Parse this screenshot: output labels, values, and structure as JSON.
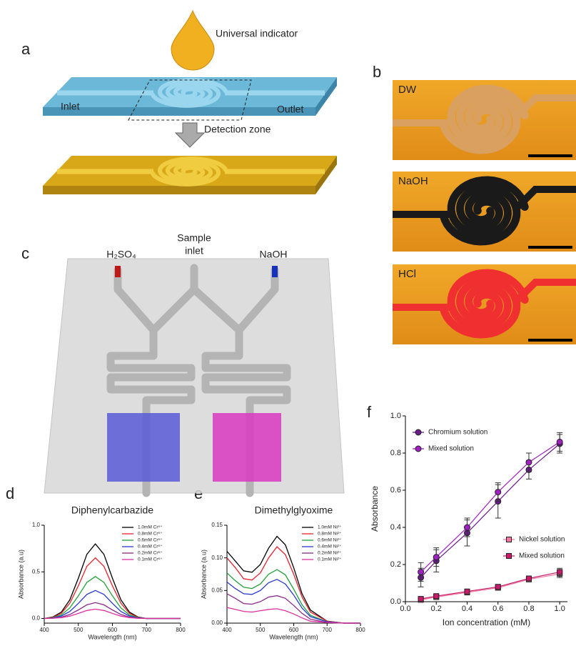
{
  "panel_labels": [
    "a",
    "b",
    "c",
    "d",
    "e",
    "f"
  ],
  "panel_a": {
    "drop": "Universal indicator",
    "inlet": "Inlet",
    "outlet": "Outlet",
    "zone": "Detection zone"
  },
  "panel_b": {
    "images": [
      "DW",
      "NaOH",
      "HCl"
    ]
  },
  "panel_c": {
    "left": "H₂SO₄",
    "middle": [
      "Sample",
      "inlet"
    ],
    "right": "NaOH"
  },
  "chart_data": [
    {
      "type": "line",
      "title": "Diphenylcarbazide",
      "x_label": "Wavelength (nm)",
      "y_label": "Absorbance (a.u)",
      "x": [
        400,
        425,
        450,
        475,
        500,
        525,
        550,
        575,
        600,
        625,
        650,
        675,
        700,
        725,
        750,
        775,
        800
      ],
      "xlim": [
        400,
        800
      ],
      "xticks": [
        400,
        500,
        600,
        700,
        800
      ],
      "ylim": [
        -0.05,
        1.0
      ],
      "yticks": [
        {
          "value": 0,
          "label": "0.0"
        },
        {
          "value": 0.5,
          "label": "0.5"
        },
        {
          "value": 1,
          "label": "1.0"
        }
      ],
      "legend": "upper right",
      "series": [
        {
          "name": "1.0mM Cr⁶⁺",
          "color": "#000000",
          "values": [
            0,
            0.016,
            0.068,
            0.2,
            0.432,
            0.688,
            0.8,
            0.688,
            0.432,
            0.2,
            0.068,
            0.016,
            0,
            0,
            0,
            0,
            0
          ]
        },
        {
          "name": "0.8mM Cr⁶⁺",
          "color": "#e8202a",
          "values": [
            0,
            0.013,
            0.055,
            0.163,
            0.351,
            0.559,
            0.65,
            0.559,
            0.351,
            0.163,
            0.055,
            0.013,
            0,
            0,
            0,
            0,
            0
          ]
        },
        {
          "name": "0.6mM Cr⁶⁺",
          "color": "#22a03a",
          "values": [
            0,
            0.009,
            0.038,
            0.113,
            0.243,
            0.387,
            0.45,
            0.387,
            0.243,
            0.113,
            0.038,
            0.009,
            0,
            0,
            0,
            0,
            0
          ]
        },
        {
          "name": "0.4mM Cr⁶⁺",
          "color": "#2838d0",
          "values": [
            0,
            0.006,
            0.026,
            0.075,
            0.162,
            0.258,
            0.3,
            0.258,
            0.162,
            0.075,
            0.026,
            0.006,
            0,
            0,
            0,
            0,
            0
          ]
        },
        {
          "name": "0.2mM Cr⁶⁺",
          "color": "#8a2a8a",
          "values": [
            0,
            0.003,
            0.014,
            0.043,
            0.092,
            0.146,
            0.17,
            0.146,
            0.092,
            0.043,
            0.014,
            0.003,
            0,
            0,
            0,
            0,
            0
          ]
        },
        {
          "name": "0.1mM Cr⁶⁺",
          "color": "#e030a0",
          "values": [
            0,
            0.002,
            0.009,
            0.025,
            0.054,
            0.086,
            0.1,
            0.086,
            0.054,
            0.025,
            0.009,
            0.002,
            0,
            0,
            0,
            0,
            0
          ]
        }
      ]
    },
    {
      "type": "line",
      "title": "Dimethylglyoxime",
      "x_label": "Wavelength (nm)",
      "y_label": "Absorbance (a.u)",
      "x": [
        400,
        425,
        450,
        475,
        500,
        525,
        550,
        575,
        600,
        625,
        650,
        700,
        750,
        800
      ],
      "xlim": [
        400,
        800
      ],
      "xticks": [
        400,
        500,
        600,
        700,
        800
      ],
      "ylim": [
        0,
        0.15
      ],
      "yticks": [
        {
          "value": 0,
          "label": "0.00"
        },
        {
          "value": 0.05,
          "label": "0.05"
        },
        {
          "value": 0.1,
          "label": "0.10"
        },
        {
          "value": 0.15,
          "label": "0.15"
        }
      ],
      "legend": "upper right",
      "series": [
        {
          "name": "1.0mM Ni²⁺",
          "color": "#000000",
          "values": [
            0.11,
            0.095,
            0.08,
            0.078,
            0.09,
            0.115,
            0.133,
            0.12,
            0.085,
            0.045,
            0.02,
            0.003,
            0,
            0
          ]
        },
        {
          "name": "0.8mM Ni²⁺",
          "color": "#e8202a",
          "values": [
            0.1,
            0.085,
            0.068,
            0.066,
            0.077,
            0.1,
            0.117,
            0.105,
            0.075,
            0.04,
            0.017,
            0.003,
            0,
            0
          ]
        },
        {
          "name": "0.6mM Ni²⁺",
          "color": "#22a03a",
          "values": [
            0.077,
            0.065,
            0.055,
            0.053,
            0.06,
            0.075,
            0.082,
            0.074,
            0.052,
            0.028,
            0.012,
            0.002,
            0,
            0
          ]
        },
        {
          "name": "0.4mM Ni²⁺",
          "color": "#2838d0",
          "values": [
            0.063,
            0.053,
            0.045,
            0.044,
            0.05,
            0.062,
            0.067,
            0.06,
            0.043,
            0.023,
            0.01,
            0.002,
            0,
            0
          ]
        },
        {
          "name": "0.2mM Ni²⁺",
          "color": "#8a2a8a",
          "values": [
            0.045,
            0.038,
            0.03,
            0.029,
            0.033,
            0.04,
            0.042,
            0.038,
            0.027,
            0.015,
            0.006,
            0.001,
            0,
            0
          ]
        },
        {
          "name": "0.1mM Ni²⁺",
          "color": "#e030a0",
          "values": [
            0.024,
            0.021,
            0.018,
            0.017,
            0.019,
            0.021,
            0.022,
            0.019,
            0.014,
            0.008,
            0.003,
            0.001,
            0,
            0
          ]
        }
      ]
    },
    {
      "type": "line",
      "x_label": "Ion concentration (mM)",
      "y_label": "Absorbance",
      "x": [
        0.1,
        0.2,
        0.4,
        0.6,
        0.8,
        1.0
      ],
      "xlim": [
        0,
        1.05
      ],
      "xticks": [
        {
          "value": 0,
          "label": "0.0"
        },
        {
          "value": 0.2,
          "label": "0.2"
        },
        {
          "value": 0.4,
          "label": "0.4"
        },
        {
          "value": 0.6,
          "label": "0.6"
        },
        {
          "value": 0.8,
          "label": "0.8"
        },
        {
          "value": 1,
          "label": "1.0"
        }
      ],
      "ylim": [
        0,
        1.0
      ],
      "yticks": [
        {
          "value": 0,
          "label": "0.0"
        },
        {
          "value": 0.2,
          "label": "0.2"
        },
        {
          "value": 0.4,
          "label": "0.4"
        },
        {
          "value": 0.6,
          "label": "0.6"
        },
        {
          "value": 0.8,
          "label": "0.8"
        },
        {
          "value": 1,
          "label": "1.0"
        }
      ],
      "series": [
        {
          "name": "Chromium solution",
          "color": "#6a1a8a",
          "marker": "circle",
          "legend": "upper left",
          "values": [
            0.13,
            0.22,
            0.37,
            0.54,
            0.71,
            0.85
          ],
          "errors": [
            0.05,
            0.06,
            0.07,
            0.09,
            0.05,
            0.05
          ]
        },
        {
          "name": "Mixed solution",
          "color": "#a020c0",
          "marker": "circle",
          "legend": "upper left",
          "values": [
            0.16,
            0.24,
            0.4,
            0.59,
            0.75,
            0.86
          ],
          "errors": [
            0.05,
            0.05,
            0.05,
            0.05,
            0.05,
            0.05
          ]
        },
        {
          "name": "Nickel solution",
          "color": "#f07aa0",
          "marker": "square",
          "legend": "center right",
          "values": [
            0.01,
            0.025,
            0.05,
            0.075,
            0.12,
            0.15
          ],
          "errors": [
            0.01,
            0.01,
            0.01,
            0.01,
            0.01,
            0.02
          ]
        },
        {
          "name": "Mixed solution",
          "color": "#c81a6a",
          "marker": "square",
          "legend": "center right",
          "values": [
            0.015,
            0.03,
            0.055,
            0.08,
            0.125,
            0.16
          ],
          "errors": [
            0.01,
            0.01,
            0.01,
            0.01,
            0.01,
            0.02
          ]
        }
      ]
    }
  ]
}
